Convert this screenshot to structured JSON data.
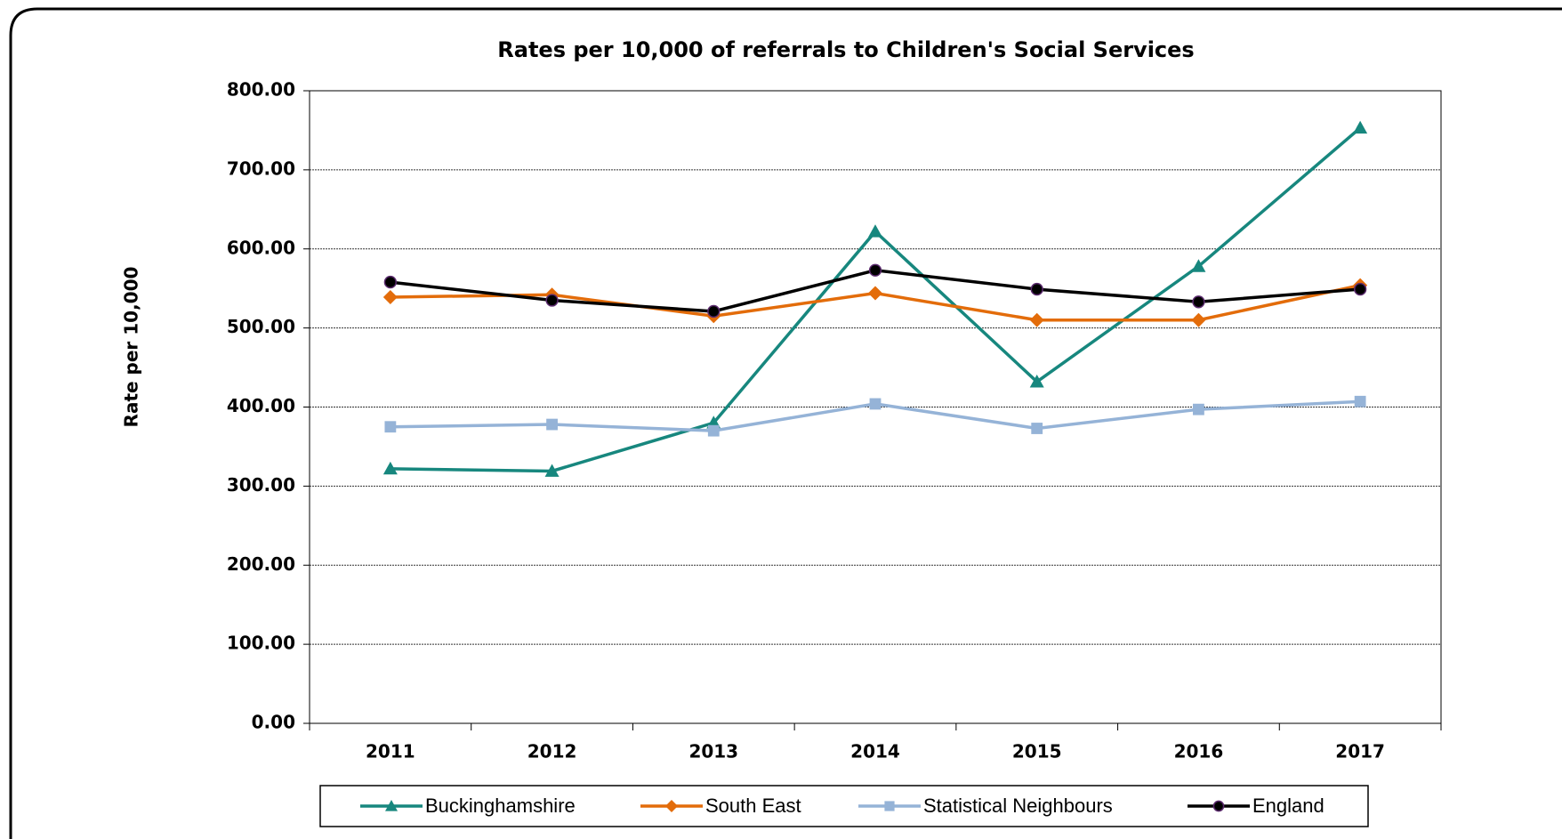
{
  "chart_data": {
    "type": "line",
    "title": "Rates per 10,000 of referrals to Children's Social Services",
    "y_label": "Rate per 10,000",
    "categories": [
      "2011",
      "2012",
      "2013",
      "2014",
      "2015",
      "2016",
      "2017"
    ],
    "series": [
      {
        "name": "Buckinghamshire",
        "color": "#17877e",
        "marker": "triangle",
        "values": [
          322,
          319,
          380,
          622,
          432,
          578,
          753
        ]
      },
      {
        "name": "South East",
        "color": "#e36c0a",
        "marker": "diamond",
        "values": [
          539,
          542,
          515,
          544,
          510,
          510,
          554
        ]
      },
      {
        "name": "Statistical Neighbours",
        "color": "#95b3d7",
        "marker": "square",
        "values": [
          375,
          378,
          370,
          404,
          373,
          397,
          407
        ]
      },
      {
        "name": "England",
        "color": "#000000",
        "marker": "circle",
        "values": [
          558,
          535,
          521,
          573,
          549,
          533,
          549
        ]
      }
    ],
    "ylim": [
      0,
      800
    ],
    "yticks": [
      {
        "value": 0,
        "label": "0.00"
      },
      {
        "value": 100,
        "label": "100.00"
      },
      {
        "value": 200,
        "label": "200.00"
      },
      {
        "value": 300,
        "label": "300.00"
      },
      {
        "value": 400,
        "label": "400.00"
      },
      {
        "value": 500,
        "label": "500.00"
      },
      {
        "value": 600,
        "label": "600.00"
      },
      {
        "value": 700,
        "label": "700.00"
      },
      {
        "value": 800,
        "label": "800.00"
      }
    ],
    "grid": true,
    "legend": "bottom"
  }
}
